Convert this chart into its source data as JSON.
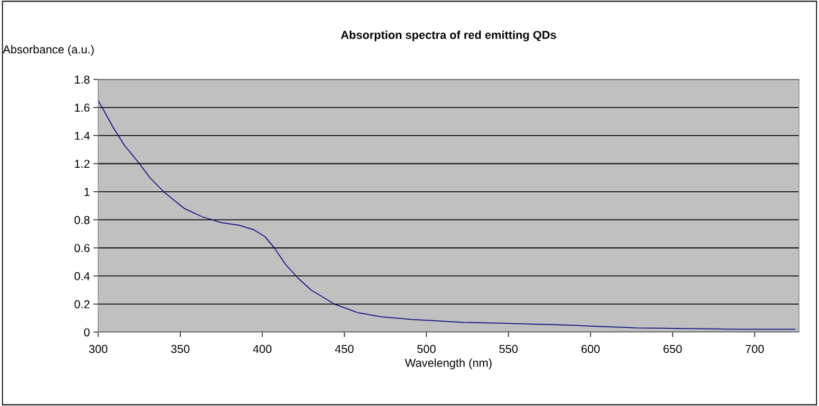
{
  "chart_data": {
    "type": "line",
    "title": "Absorption spectra of red emitting QDs",
    "xlabel": "Wavelength (nm)",
    "ylabel": "Absorbance (a.u.)",
    "series": [
      {
        "color": "#000080",
        "x": [
          300,
          309,
          316,
          324.4,
          331.5,
          339.9,
          352.5,
          363.7,
          375,
          386.2,
          394.6,
          401.6,
          407.3,
          414.3,
          421.3,
          429.7,
          443.8,
          457.8,
          471.9,
          490.8,
          522.4,
          558.2,
          586.6,
          606.7,
          627.7,
          690.9,
          724.6
        ],
        "values": [
          1.65,
          1.46,
          1.33,
          1.21,
          1.1,
          1.0,
          0.88,
          0.82,
          0.78,
          0.76,
          0.73,
          0.68,
          0.6,
          0.48,
          0.39,
          0.3,
          0.2,
          0.14,
          0.11,
          0.09,
          0.07,
          0.06,
          0.05,
          0.04,
          0.03,
          0.02,
          0.02
        ]
      }
    ],
    "xlim": [
      300,
      727
    ],
    "xticks": [
      300,
      350,
      400,
      450,
      500,
      550,
      600,
      650,
      700
    ],
    "ylim": [
      0,
      1.8
    ],
    "yticks": [
      0,
      0.2,
      0.4,
      0.6,
      0.8,
      1,
      1.2,
      1.4,
      1.6,
      1.8
    ],
    "grid": "y",
    "legend": false,
    "marker": "none",
    "line_style": "solid"
  }
}
